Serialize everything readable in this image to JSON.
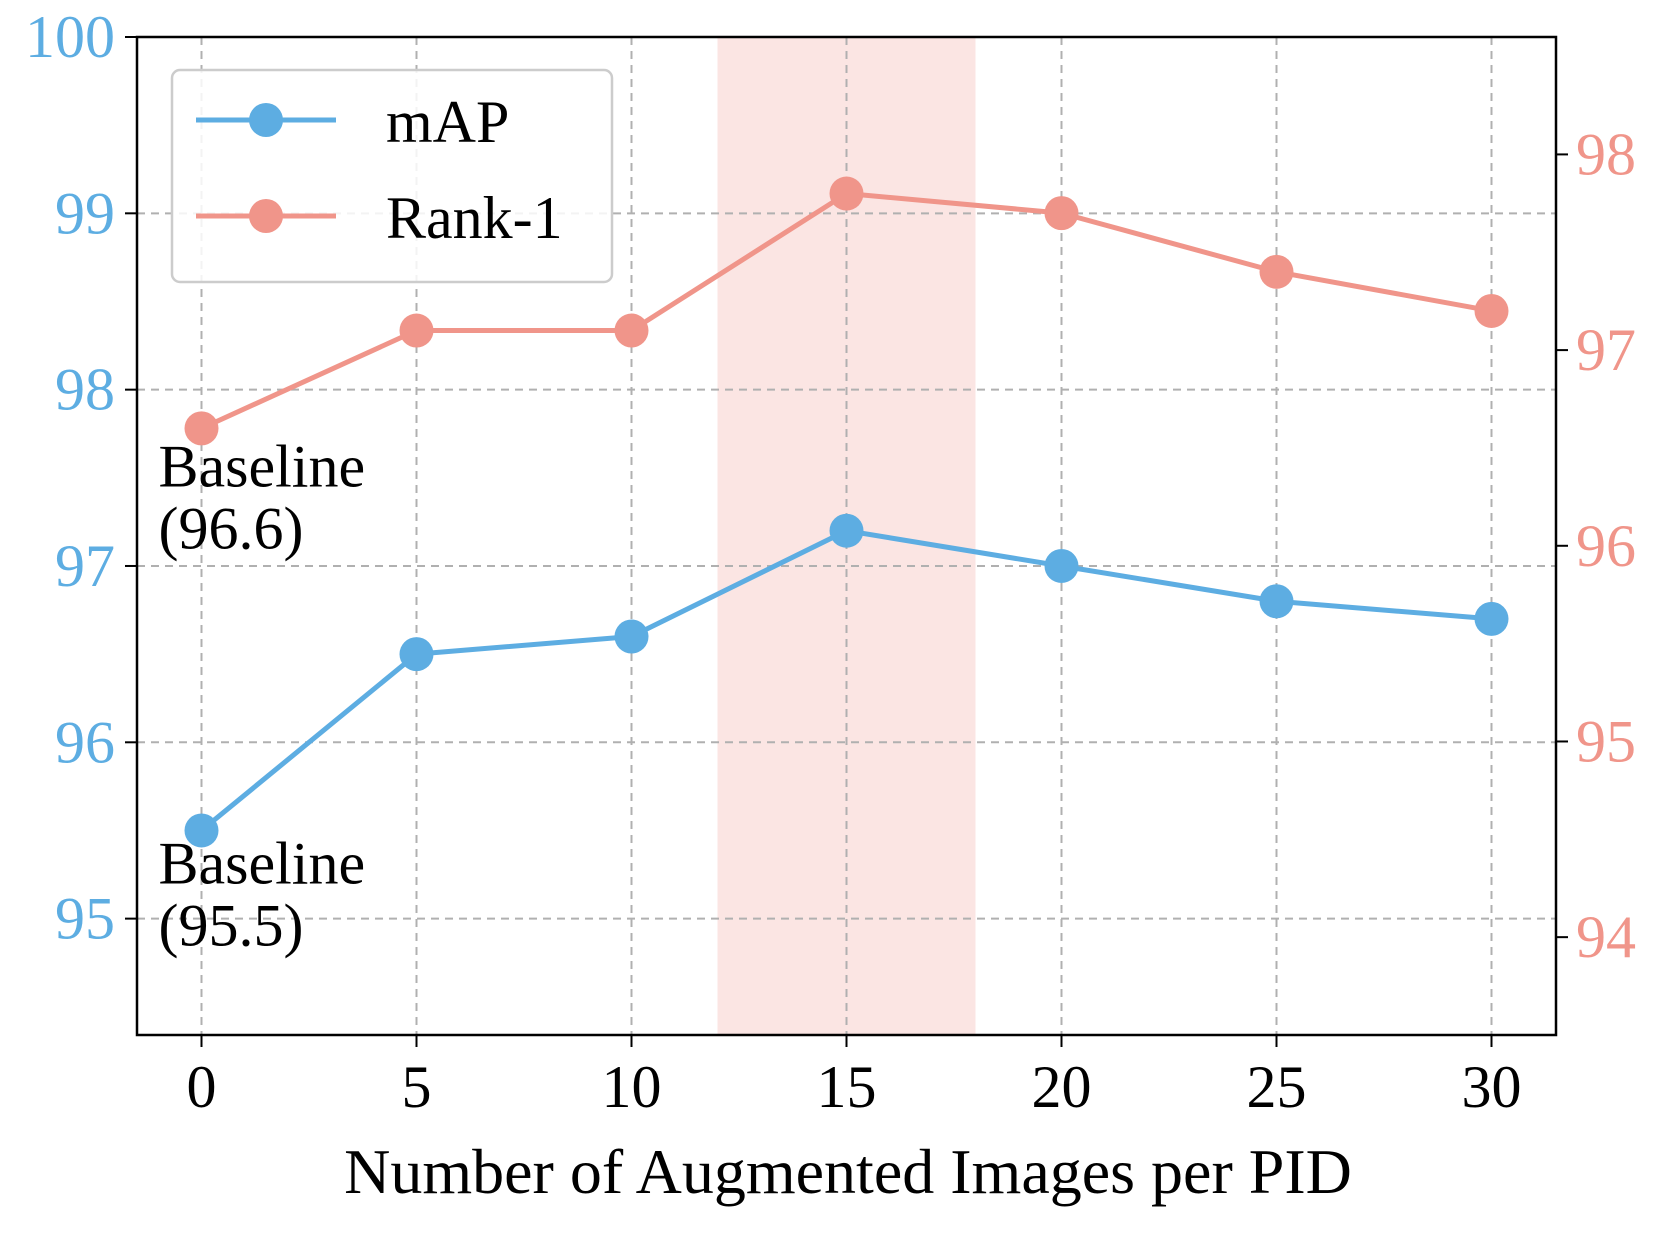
{
  "chart_data": {
    "type": "line",
    "title": "",
    "xlabel": "Number of Augmented Images per PID",
    "ylabel_left": "",
    "ylabel_right": "",
    "x": [
      0,
      5,
      10,
      15,
      20,
      25,
      30
    ],
    "x_ticks": [
      "0",
      "5",
      "10",
      "15",
      "20",
      "25",
      "30"
    ],
    "xlim": [
      -1.5,
      31.5
    ],
    "y_left": {
      "lim": [
        94.34,
        100.0
      ],
      "ticks": [
        95,
        96,
        97,
        98,
        99,
        100
      ],
      "tick_labels": [
        "95",
        "96",
        "97",
        "98",
        "99",
        "100"
      ],
      "color": "#5DADE2"
    },
    "y_right": {
      "lim": [
        93.5,
        98.6
      ],
      "ticks": [
        94,
        95,
        96,
        97,
        98
      ],
      "tick_labels": [
        "94",
        "95",
        "96",
        "97",
        "98"
      ],
      "color": "#F0958A"
    },
    "series": [
      {
        "name": "mAP",
        "axis": "left",
        "color": "#5DADE2",
        "values": [
          95.5,
          96.5,
          96.6,
          97.2,
          97.0,
          96.8,
          96.7
        ]
      },
      {
        "name": "Rank-1",
        "axis": "right",
        "color": "#F0958A",
        "values": [
          96.6,
          97.1,
          97.1,
          97.8,
          97.7,
          97.4,
          97.2
        ]
      }
    ],
    "highlight_band": {
      "x_range": [
        12,
        18
      ],
      "color": "#F9D4D1"
    },
    "annotations": [
      {
        "lines": [
          "Baseline",
          "(96.6)"
        ],
        "anchor_x": -1.0,
        "anchor_y_left": 97.45
      },
      {
        "lines": [
          "Baseline",
          "(95.5)"
        ],
        "anchor_x": -1.0,
        "anchor_y_left": 95.2
      }
    ],
    "legend": {
      "position": "top-left",
      "entries": [
        "mAP",
        "Rank-1"
      ]
    },
    "grid": true
  }
}
